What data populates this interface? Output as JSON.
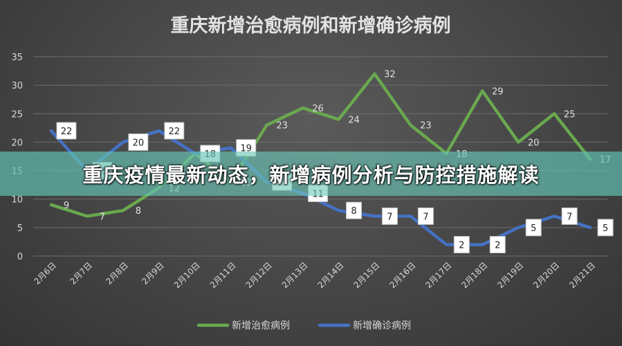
{
  "chart_data": {
    "type": "line",
    "title": "重庆新增治愈病例和新增确诊病例",
    "categories": [
      "2月6日",
      "2月7日",
      "2月8日",
      "2月9日",
      "2月10日",
      "2月11日",
      "2月12日",
      "2月13日",
      "2月14日",
      "2月15日",
      "2月16日",
      "2月17日",
      "2月18日",
      "2月19日",
      "2月20日",
      "2月21日"
    ],
    "yticks": [
      "0",
      "5",
      "10",
      "15",
      "20",
      "25",
      "30",
      "35"
    ],
    "ylim": [
      0,
      35
    ],
    "grid": true,
    "legend_position": "bottom",
    "series": [
      {
        "name": "新增治愈病例",
        "color": "#6aa84f",
        "values": [
          9,
          7,
          8,
          12,
          18,
          13,
          23,
          26,
          24,
          32,
          23,
          18,
          29,
          20,
          25,
          17
        ]
      },
      {
        "name": "新增确诊病例",
        "color": "#4472c4",
        "values": [
          22,
          15,
          20,
          22,
          18,
          19,
          13,
          11,
          8,
          7,
          7,
          2,
          2,
          5,
          7,
          5
        ]
      }
    ]
  },
  "banner": {
    "text": "重庆疫情最新动态，新增病例分析与防控措施解读"
  }
}
